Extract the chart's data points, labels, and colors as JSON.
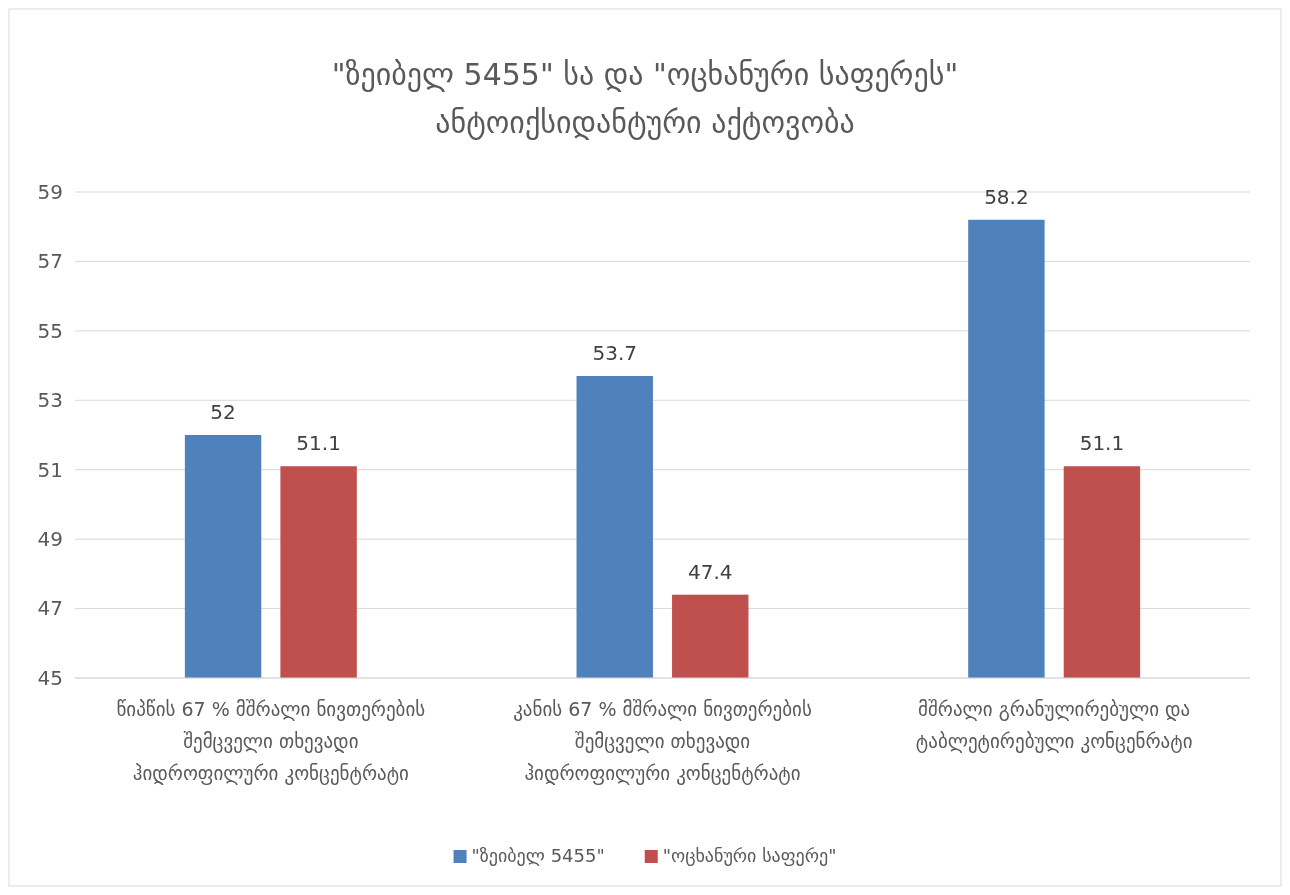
{
  "chart_data": {
    "type": "bar",
    "title": "\"ზეიბელ 5455\" სა და \"ოცხანური საფერეს\"\nანტოიქსიდანტური აქტოვობა",
    "categories": [
      "წიპწის 67 % მშრალი ნივთერების\nშემცველი თხევადი\nჰიდროფილური კონცენტრატი",
      "კანის  67 % მშრალი ნივთერების\nშემცველი თხევადი\nჰიდროფილური კონცენტრატი",
      "მშრალი გრანულირებული და\nტაბლეტირებული კონცენრატი"
    ],
    "series": [
      {
        "name": "\"ზეიბელ 5455\"",
        "color": "#4f81bd",
        "values": [
          52,
          53.7,
          58.2
        ]
      },
      {
        "name": "\"ოცხანური საფერე\"",
        "color": "#c0504d",
        "values": [
          51.1,
          47.4,
          51.1
        ]
      }
    ],
    "ylim": [
      45,
      59
    ],
    "yticks": [
      45,
      47,
      49,
      51,
      53,
      55,
      57,
      59
    ],
    "grid": "y",
    "legend": "bottom",
    "data_labels": true
  }
}
